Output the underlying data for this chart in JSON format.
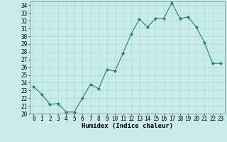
{
  "x": [
    0,
    1,
    2,
    3,
    4,
    5,
    6,
    7,
    8,
    9,
    10,
    11,
    12,
    13,
    14,
    15,
    16,
    17,
    18,
    19,
    20,
    21,
    22,
    23
  ],
  "y": [
    23.5,
    22.5,
    21.2,
    21.3,
    20.2,
    20.2,
    22.0,
    23.8,
    23.2,
    25.7,
    25.5,
    27.8,
    30.3,
    32.2,
    31.2,
    32.3,
    32.3,
    34.3,
    32.3,
    32.5,
    31.2,
    29.2,
    26.5,
    26.5
  ],
  "line_color": "#2e7d6e",
  "marker": "D",
  "marker_size": 2.0,
  "bg_color": "#c8ecec",
  "grid_color": "#a8d8d8",
  "xlabel": "Humidex (Indice chaleur)",
  "xlim": [
    -0.5,
    23.5
  ],
  "ylim": [
    20,
    34.5
  ],
  "yticks": [
    20,
    21,
    22,
    23,
    24,
    25,
    26,
    27,
    28,
    29,
    30,
    31,
    32,
    33,
    34
  ],
  "xticks": [
    0,
    1,
    2,
    3,
    4,
    5,
    6,
    7,
    8,
    9,
    10,
    11,
    12,
    13,
    14,
    15,
    16,
    17,
    18,
    19,
    20,
    21,
    22,
    23
  ],
  "tick_fontsize": 5.5,
  "xlabel_fontsize": 6.5,
  "line_width": 0.8
}
